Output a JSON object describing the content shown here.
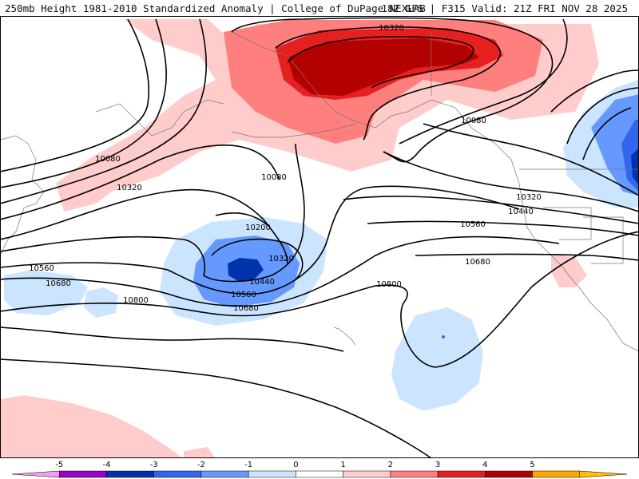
{
  "header": {
    "title_left": "250mb Height 1981-2010 Standardized Anomaly | College of DuPage NEXLAB",
    "title_right": "18Z GFS | F315 Valid: 21Z FRI NOV 28 2025"
  },
  "contour_labels": [
    "10320",
    "10080",
    "10080",
    "10320",
    "10200",
    "10320",
    "10440",
    "10560",
    "10680",
    "10560",
    "10680",
    "10800",
    "10800",
    "10080",
    "10320",
    "10440",
    "10560",
    "10680"
  ],
  "colorbar": {
    "ticks": [
      "-5",
      "-4",
      "-3",
      "-2",
      "-1",
      "0",
      "1",
      "2",
      "3",
      "4",
      "5"
    ],
    "colors": [
      "#f0a0f0",
      "#9900cc",
      "#0033aa",
      "#3366ee",
      "#6699ff",
      "#cce5ff",
      "#ffffff",
      "#ffcccc",
      "#ff7f7f",
      "#e62020",
      "#b30000",
      "#ffa500",
      "#ffc000"
    ]
  }
}
